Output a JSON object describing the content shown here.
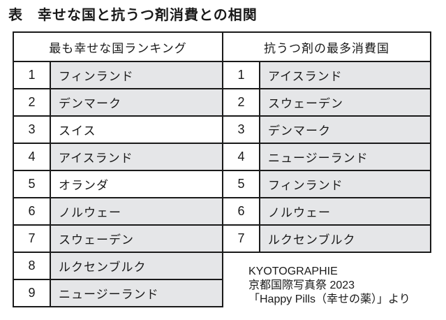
{
  "title": "表　幸せな国と抗うつ剤消費との相関",
  "colors": {
    "highlight_cell_gray": "#e5e6e8",
    "border_black": "#1a1a1a",
    "text_black": "#1a1a1a"
  },
  "left_table": {
    "header": "最も幸せな国ランキング",
    "rows": [
      {
        "rank": "1",
        "country": "フィンランド",
        "highlighted": true
      },
      {
        "rank": "2",
        "country": "デンマーク",
        "highlighted": true
      },
      {
        "rank": "3",
        "country": "スイス",
        "highlighted": false
      },
      {
        "rank": "4",
        "country": "アイスランド",
        "highlighted": true
      },
      {
        "rank": "5",
        "country": "オランダ",
        "highlighted": false
      },
      {
        "rank": "6",
        "country": "ノルウェー",
        "highlighted": true
      },
      {
        "rank": "7",
        "country": "スウェーデン",
        "highlighted": true
      },
      {
        "rank": "8",
        "country": "ルクセンブルク",
        "highlighted": true
      },
      {
        "rank": "9",
        "country": "ニュージーランド",
        "highlighted": true
      }
    ]
  },
  "right_table": {
    "header": "抗うつ剤の最多消費国",
    "rows": [
      {
        "rank": "1",
        "country": "アイスランド",
        "highlighted": true
      },
      {
        "rank": "2",
        "country": "スウェーデン",
        "highlighted": true
      },
      {
        "rank": "3",
        "country": "デンマーク",
        "highlighted": true
      },
      {
        "rank": "4",
        "country": "ニュージーランド",
        "highlighted": true
      },
      {
        "rank": "5",
        "country": "フィンランド",
        "highlighted": true
      },
      {
        "rank": "6",
        "country": "ノルウェー",
        "highlighted": true
      },
      {
        "rank": "7",
        "country": "ルクセンブルク",
        "highlighted": true
      }
    ]
  },
  "credit": {
    "line1": "KYOTOGRAPHIE",
    "line2": "京都国際写真祭 2023",
    "line3": "「Happy Pills（幸せの薬）」より"
  }
}
